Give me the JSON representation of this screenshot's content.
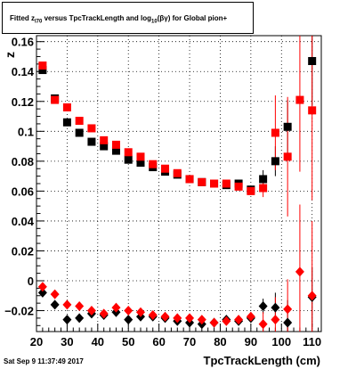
{
  "title": {
    "p1": "Fitted  z",
    "sub1": "l70",
    "p2": " versus TpcTrackLength and log",
    "sub2": "10",
    "p3": "(βγ) for Global pion+"
  },
  "footer_text": "Sat Sep  9 11:37:49 2017",
  "chart_data": {
    "type": "scatter",
    "title": "Fitted  zl70 versus TpcTrackLength and log10(βγ) for Global pion+",
    "xlabel": "TpcTrackLength (cm)",
    "ylabel": "z",
    "xlim": [
      20,
      113
    ],
    "ylim": [
      -0.034,
      0.164
    ],
    "xticks": [
      20,
      30,
      40,
      50,
      60,
      70,
      80,
      90,
      100,
      110
    ],
    "yticks": [
      -0.02,
      0,
      0.02,
      0.04,
      0.06,
      0.08,
      0.1,
      0.12,
      0.14,
      0.16
    ],
    "ytick_labels": [
      "−0.02",
      "0",
      "0.02",
      "0.04",
      "0.06",
      "0.08",
      "0.1",
      "0.12",
      "0.14",
      "0.16"
    ],
    "grid": true,
    "series": [
      {
        "marker": "square",
        "color": "#000000",
        "points": [
          [
            22,
            0.141,
            0.002
          ],
          [
            26,
            0.122,
            0.002
          ],
          [
            30,
            0.106,
            0.002
          ],
          [
            34,
            0.099,
            0.002
          ],
          [
            38,
            0.093,
            0.002
          ],
          [
            42,
            0.09,
            0.002
          ],
          [
            46,
            0.087,
            0.002
          ],
          [
            50,
            0.081,
            0.002
          ],
          [
            54,
            0.079,
            0.002
          ],
          [
            58,
            0.076,
            0.002
          ],
          [
            62,
            0.073,
            0.002
          ],
          [
            66,
            0.071,
            0.002
          ],
          [
            70,
            0.068,
            0.002
          ],
          [
            74,
            0.066,
            0.002
          ],
          [
            78,
            0.065,
            0.002
          ],
          [
            82,
            0.064,
            0.002
          ],
          [
            86,
            0.065,
            0.002
          ],
          [
            90,
            0.061,
            0.002
          ],
          [
            94,
            0.068,
            0.006
          ],
          [
            98,
            0.08,
            0.01
          ],
          [
            102,
            0.103,
            0.018
          ],
          [
            110,
            0.147,
            0.03
          ]
        ]
      },
      {
        "marker": "square",
        "color": "#ff0000",
        "points": [
          [
            22,
            0.144,
            0.002
          ],
          [
            26,
            0.121,
            0.002
          ],
          [
            30,
            0.116,
            0.002
          ],
          [
            34,
            0.107,
            0.002
          ],
          [
            38,
            0.102,
            0.002
          ],
          [
            42,
            0.094,
            0.002
          ],
          [
            46,
            0.091,
            0.002
          ],
          [
            50,
            0.086,
            0.002
          ],
          [
            54,
            0.083,
            0.002
          ],
          [
            58,
            0.078,
            0.002
          ],
          [
            62,
            0.075,
            0.002
          ],
          [
            66,
            0.072,
            0.002
          ],
          [
            70,
            0.068,
            0.002
          ],
          [
            74,
            0.066,
            0.002
          ],
          [
            78,
            0.065,
            0.002
          ],
          [
            82,
            0.065,
            0.002
          ],
          [
            86,
            0.063,
            0.002
          ],
          [
            90,
            0.06,
            0.002
          ],
          [
            94,
            0.062,
            0.006
          ],
          [
            98,
            0.099,
            0.025
          ],
          [
            102,
            0.083,
            0.04
          ],
          [
            106,
            0.121,
            0.048
          ],
          [
            110,
            0.114,
            0.06
          ]
        ]
      },
      {
        "marker": "diamond",
        "color": "#000000",
        "points": [
          [
            22,
            -0.008,
            0.002
          ],
          [
            26,
            -0.016,
            0.002
          ],
          [
            30,
            -0.026,
            0.002
          ],
          [
            34,
            -0.025,
            0.002
          ],
          [
            38,
            -0.022,
            0.002
          ],
          [
            42,
            -0.023,
            0.002
          ],
          [
            46,
            -0.021,
            0.002
          ],
          [
            50,
            -0.026,
            0.002
          ],
          [
            54,
            -0.024,
            0.002
          ],
          [
            58,
            -0.024,
            0.002
          ],
          [
            62,
            -0.025,
            0.002
          ],
          [
            66,
            -0.027,
            0.002
          ],
          [
            70,
            -0.028,
            0.002
          ],
          [
            74,
            -0.029,
            0.002
          ],
          [
            78,
            -0.028,
            0.002
          ],
          [
            82,
            -0.026,
            0.002
          ],
          [
            86,
            -0.027,
            0.002
          ],
          [
            90,
            -0.025,
            0.003
          ],
          [
            94,
            -0.017,
            0.005
          ],
          [
            98,
            -0.018,
            0.01
          ],
          [
            102,
            -0.028,
            0.015
          ],
          [
            110,
            -0.011,
            0.02
          ]
        ]
      },
      {
        "marker": "diamond",
        "color": "#ff0000",
        "points": [
          [
            22,
            -0.004,
            0.002
          ],
          [
            26,
            -0.009,
            0.002
          ],
          [
            30,
            -0.016,
            0.002
          ],
          [
            34,
            -0.017,
            0.002
          ],
          [
            38,
            -0.02,
            0.002
          ],
          [
            42,
            -0.022,
            0.002
          ],
          [
            46,
            -0.018,
            0.002
          ],
          [
            50,
            -0.02,
            0.002
          ],
          [
            54,
            -0.021,
            0.002
          ],
          [
            58,
            -0.023,
            0.002
          ],
          [
            62,
            -0.024,
            0.002
          ],
          [
            66,
            -0.025,
            0.002
          ],
          [
            70,
            -0.025,
            0.002
          ],
          [
            74,
            -0.026,
            0.002
          ],
          [
            78,
            -0.028,
            0.002
          ],
          [
            82,
            -0.027,
            0.002
          ],
          [
            86,
            -0.026,
            0.002
          ],
          [
            90,
            -0.024,
            0.003
          ],
          [
            94,
            -0.029,
            0.008
          ],
          [
            98,
            -0.026,
            0.015
          ],
          [
            102,
            -0.019,
            0.02
          ],
          [
            106,
            0.006,
            0.045
          ],
          [
            110,
            -0.01,
            0.05
          ]
        ]
      }
    ]
  }
}
